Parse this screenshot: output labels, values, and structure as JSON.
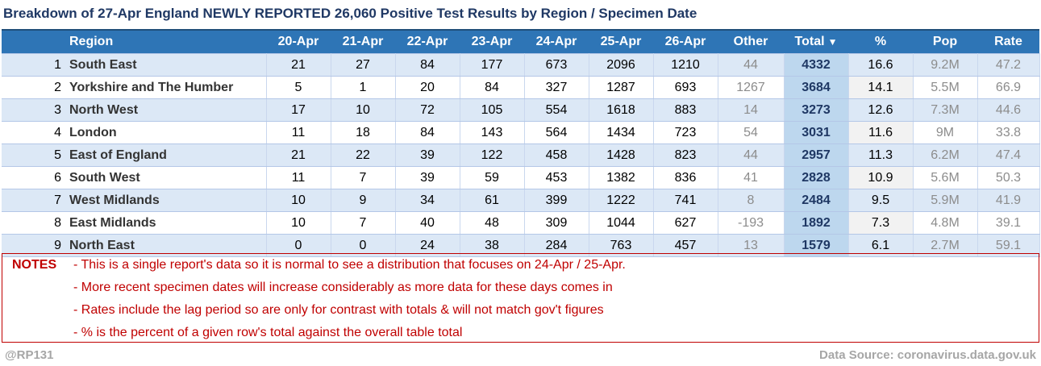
{
  "title": "Breakdown of 27-Apr England NEWLY REPORTED 26,060 Positive Test Results by Region / Specimen Date",
  "table": {
    "headers": {
      "region": "Region",
      "d1": "20-Apr",
      "d2": "21-Apr",
      "d3": "22-Apr",
      "d4": "23-Apr",
      "d5": "24-Apr",
      "d6": "25-Apr",
      "d7": "26-Apr",
      "other": "Other",
      "total": "Total",
      "pct": "%",
      "pop": "Pop",
      "rate": "Rate"
    },
    "sort_icon": "▼",
    "rows": [
      {
        "n": "1",
        "region": "South East",
        "d1": "21",
        "d2": "27",
        "d3": "84",
        "d4": "177",
        "d5": "673",
        "d6": "2096",
        "d7": "1210",
        "other": "44",
        "total": "4332",
        "pct": "16.6",
        "pop": "9.2M",
        "rate": "47.2"
      },
      {
        "n": "2",
        "region": "Yorkshire and The Humber",
        "d1": "5",
        "d2": "1",
        "d3": "20",
        "d4": "84",
        "d5": "327",
        "d6": "1287",
        "d7": "693",
        "other": "1267",
        "total": "3684",
        "pct": "14.1",
        "pop": "5.5M",
        "rate": "66.9"
      },
      {
        "n": "3",
        "region": "North West",
        "d1": "17",
        "d2": "10",
        "d3": "72",
        "d4": "105",
        "d5": "554",
        "d6": "1618",
        "d7": "883",
        "other": "14",
        "total": "3273",
        "pct": "12.6",
        "pop": "7.3M",
        "rate": "44.6"
      },
      {
        "n": "4",
        "region": "London",
        "d1": "11",
        "d2": "18",
        "d3": "84",
        "d4": "143",
        "d5": "564",
        "d6": "1434",
        "d7": "723",
        "other": "54",
        "total": "3031",
        "pct": "11.6",
        "pop": "9M",
        "rate": "33.8"
      },
      {
        "n": "5",
        "region": "East of England",
        "d1": "21",
        "d2": "22",
        "d3": "39",
        "d4": "122",
        "d5": "458",
        "d6": "1428",
        "d7": "823",
        "other": "44",
        "total": "2957",
        "pct": "11.3",
        "pop": "6.2M",
        "rate": "47.4"
      },
      {
        "n": "6",
        "region": "South West",
        "d1": "11",
        "d2": "7",
        "d3": "39",
        "d4": "59",
        "d5": "453",
        "d6": "1382",
        "d7": "836",
        "other": "41",
        "total": "2828",
        "pct": "10.9",
        "pop": "5.6M",
        "rate": "50.3"
      },
      {
        "n": "7",
        "region": "West Midlands",
        "d1": "10",
        "d2": "9",
        "d3": "34",
        "d4": "61",
        "d5": "399",
        "d6": "1222",
        "d7": "741",
        "other": "8",
        "total": "2484",
        "pct": "9.5",
        "pop": "5.9M",
        "rate": "41.9"
      },
      {
        "n": "8",
        "region": "East Midlands",
        "d1": "10",
        "d2": "7",
        "d3": "40",
        "d4": "48",
        "d5": "309",
        "d6": "1044",
        "d7": "627",
        "other": "-193",
        "total": "1892",
        "pct": "7.3",
        "pop": "4.8M",
        "rate": "39.1"
      },
      {
        "n": "9",
        "region": "North East",
        "d1": "0",
        "d2": "0",
        "d3": "24",
        "d4": "38",
        "d5": "284",
        "d6": "763",
        "d7": "457",
        "other": "13",
        "total": "1579",
        "pct": "6.1",
        "pop": "2.7M",
        "rate": "59.1"
      }
    ]
  },
  "notes": {
    "label": "NOTES",
    "lines": [
      "- This is a single report's data so it is normal to see a distribution that focuses on 24-Apr / 25-Apr.",
      "- More recent specimen dates will increase considerably as more data for these days comes in",
      "- Rates include the lag period so are only for contrast with totals & will not match gov't figures",
      "- % is the percent of a given row's total against the overall table total"
    ]
  },
  "footer": {
    "left": "@RP131",
    "right": "Data Source: coronavirus.data.gov.uk"
  },
  "colors": {
    "header_bg": "#2e75b6",
    "title": "#1f3864",
    "notes_red": "#c00000",
    "row_alt": "#dce8f6"
  }
}
